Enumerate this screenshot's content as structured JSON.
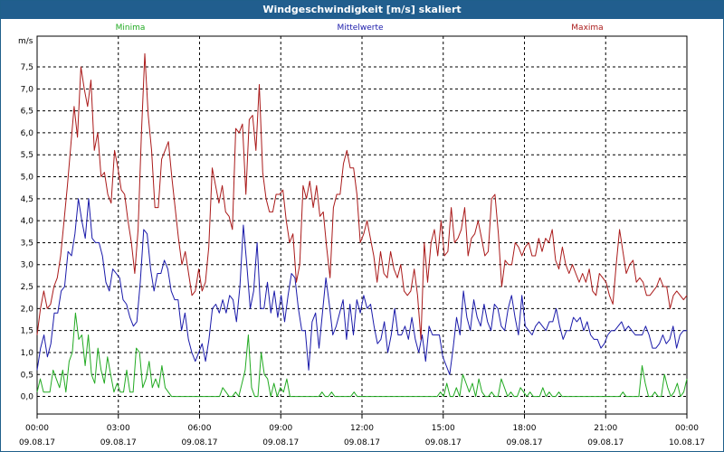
{
  "window": {
    "title": "Windgeschwindigkeit [m/s] skaliert"
  },
  "chart_data": {
    "type": "line",
    "title": "Windgeschwindigkeit [m/s] skaliert",
    "ylabel": "m/s",
    "xlabel": "",
    "ylim": [
      -0.4,
      8.2
    ],
    "y_ticks": [
      "0,0",
      "0,5",
      "1,0",
      "1,5",
      "2,0",
      "2,5",
      "3,0",
      "3,5",
      "4,0",
      "4,5",
      "5,0",
      "5,5",
      "6,0",
      "6,5",
      "7,0",
      "7,5"
    ],
    "y_tick_values": [
      0,
      0.5,
      1,
      1.5,
      2,
      2.5,
      3,
      3.5,
      4,
      4.5,
      5,
      5.5,
      6,
      6.5,
      7,
      7.5
    ],
    "x_range_hours": [
      0,
      24
    ],
    "x_ticks": [
      {
        "hour": 0,
        "time": "00:00",
        "date": "09.08.17"
      },
      {
        "hour": 3,
        "time": "03:00",
        "date": "09.08.17"
      },
      {
        "hour": 6,
        "time": "06:00",
        "date": "09.08.17"
      },
      {
        "hour": 9,
        "time": "09:00",
        "date": "09.08.17"
      },
      {
        "hour": 12,
        "time": "12:00",
        "date": "09.08.17"
      },
      {
        "hour": 15,
        "time": "15:00",
        "date": "09.08.17"
      },
      {
        "hour": 18,
        "time": "18:00",
        "date": "09.08.17"
      },
      {
        "hour": 21,
        "time": "21:00",
        "date": "09.08.17"
      },
      {
        "hour": 24,
        "time": "00:00",
        "date": "10.08.17"
      }
    ],
    "grid": true,
    "legend_position": "top",
    "series": [
      {
        "name": "Minima",
        "color": "#22aa22",
        "values": [
          0.1,
          0.4,
          0.1,
          0.1,
          0.1,
          0.6,
          0.4,
          0.2,
          0.6,
          0.1,
          0.8,
          1.0,
          1.9,
          1.3,
          1.4,
          0.7,
          1.4,
          0.5,
          0.3,
          1.1,
          0.6,
          0.3,
          0.9,
          0.5,
          0.1,
          0.3,
          0.1,
          0.1,
          0.6,
          0.1,
          0.1,
          1.1,
          1.0,
          0.2,
          0.4,
          0.8,
          0.2,
          0.4,
          0.2,
          0.7,
          0.2,
          0.1,
          0.0,
          0.0,
          0.0,
          0.0,
          0.0,
          0.0,
          0.0,
          0.0,
          0.0,
          0.0,
          0.0,
          0.0,
          0.0,
          0.0,
          0.0,
          0.0,
          0.2,
          0.1,
          0.0,
          0.0,
          0.1,
          0.0,
          0.3,
          0.6,
          1.4,
          0.2,
          0.0,
          0.0,
          1.0,
          0.5,
          0.4,
          0.0,
          0.3,
          0.0,
          0.2,
          0.1,
          0.4,
          0.0,
          0.0,
          0.0,
          0.0,
          0.0,
          0.0,
          0.0,
          0.0,
          0.0,
          0.0,
          0.1,
          0.0,
          0.0,
          0.1,
          0.0,
          0.0,
          0.0,
          0.0,
          0.0,
          0.0,
          0.1,
          0.0,
          0.0,
          0.0,
          0.0,
          0.0,
          0.0,
          0.0,
          0.0,
          0.0,
          0.0,
          0.0,
          0.0,
          0.0,
          0.0,
          0.0,
          0.0,
          0.0,
          0.0,
          0.0,
          0.0,
          0.0,
          0.0,
          0.0,
          0.0,
          0.0,
          0.0,
          0.1,
          0.0,
          0.3,
          0.0,
          0.0,
          0.2,
          0.0,
          0.5,
          0.3,
          0.1,
          0.3,
          0.0,
          0.4,
          0.1,
          0.0,
          0.0,
          0.1,
          0.0,
          0.0,
          0.4,
          0.2,
          0.0,
          0.1,
          0.0,
          0.0,
          0.2,
          0.1,
          0.0,
          0.1,
          0.0,
          0.0,
          0.0,
          0.2,
          0.0,
          0.1,
          0.0,
          0.0,
          0.1,
          0.0,
          0.0,
          0.0,
          0.0,
          0.0,
          0.0,
          0.0,
          0.0,
          0.0,
          0.0,
          0.0,
          0.0,
          0.0,
          0.0,
          0.0,
          0.0,
          0.0,
          0.0,
          0.0,
          0.1,
          0.0,
          0.0,
          0.0,
          0.0,
          0.0,
          0.7,
          0.3,
          0.0,
          0.0,
          0.1,
          0.0,
          0.0,
          0.5,
          0.2,
          0.0,
          0.1,
          0.3,
          0.0,
          0.1,
          0.4
        ]
      },
      {
        "name": "Mittelwerte",
        "color": "#1a1aaa",
        "values": [
          0.6,
          1.1,
          1.4,
          0.9,
          1.2,
          1.9,
          1.9,
          2.4,
          2.5,
          3.3,
          3.2,
          3.7,
          4.5,
          4.0,
          3.6,
          4.5,
          3.6,
          3.5,
          3.5,
          3.2,
          2.6,
          2.4,
          2.9,
          2.8,
          2.7,
          2.2,
          2.1,
          1.8,
          1.6,
          1.7,
          2.6,
          3.8,
          3.7,
          2.9,
          2.4,
          2.8,
          2.8,
          3.1,
          2.9,
          2.4,
          2.2,
          2.2,
          1.5,
          1.9,
          1.3,
          1.0,
          0.8,
          1.0,
          1.2,
          0.8,
          1.3,
          2.0,
          2.1,
          1.9,
          2.2,
          1.9,
          2.3,
          2.2,
          1.7,
          2.5,
          3.9,
          3.0,
          2.0,
          2.4,
          3.5,
          2.0,
          2.0,
          2.6,
          1.9,
          2.4,
          1.8,
          2.3,
          1.7,
          2.3,
          2.8,
          2.7,
          2.0,
          1.5,
          1.5,
          0.6,
          1.7,
          1.9,
          1.1,
          1.9,
          2.7,
          2.1,
          1.4,
          1.6,
          1.9,
          2.2,
          1.3,
          2.1,
          1.4,
          2.2,
          1.9,
          2.3,
          2.0,
          2.1,
          1.6,
          1.2,
          1.3,
          1.7,
          1.0,
          1.4,
          2.0,
          1.4,
          1.4,
          1.6,
          1.3,
          1.8,
          1.3,
          1.0,
          1.4,
          0.8,
          1.6,
          1.4,
          1.4,
          1.4,
          0.9,
          0.7,
          0.5,
          1.1,
          1.8,
          1.4,
          2.4,
          1.8,
          1.5,
          2.2,
          1.8,
          1.6,
          2.1,
          1.7,
          1.5,
          2.1,
          2.0,
          1.6,
          1.5,
          2.0,
          2.3,
          1.8,
          1.4,
          2.3,
          1.6,
          1.5,
          1.4,
          1.6,
          1.7,
          1.6,
          1.5,
          1.7,
          1.7,
          2.0,
          1.6,
          1.3,
          1.5,
          1.5,
          1.8,
          1.7,
          1.8,
          1.5,
          1.7,
          1.4,
          1.3,
          1.3,
          1.1,
          1.2,
          1.4,
          1.5,
          1.5,
          1.6,
          1.7,
          1.5,
          1.6,
          1.5,
          1.4,
          1.4,
          1.4,
          1.6,
          1.4,
          1.1,
          1.1,
          1.2,
          1.4,
          1.2,
          1.3,
          1.6,
          1.1,
          1.4,
          1.5,
          1.5
        ]
      },
      {
        "name": "Maxima",
        "color": "#aa1a1a",
        "values": [
          1.4,
          2.0,
          2.4,
          2.0,
          2.1,
          2.5,
          2.7,
          3.2,
          4.0,
          4.8,
          5.7,
          6.6,
          5.9,
          7.5,
          7.0,
          6.6,
          7.2,
          5.6,
          6.0,
          5.0,
          5.1,
          4.6,
          4.4,
          5.6,
          5.2,
          4.7,
          4.6,
          4.0,
          3.5,
          2.8,
          3.8,
          6.0,
          7.8,
          6.4,
          5.6,
          4.3,
          4.3,
          5.4,
          5.6,
          5.8,
          5.0,
          4.3,
          3.6,
          3.0,
          3.3,
          2.8,
          2.3,
          2.4,
          2.9,
          2.4,
          2.6,
          3.4,
          5.2,
          4.8,
          4.4,
          4.8,
          4.2,
          4.1,
          3.8,
          6.1,
          6.0,
          6.2,
          4.6,
          6.3,
          6.4,
          5.6,
          7.1,
          5.1,
          4.5,
          4.2,
          4.2,
          4.6,
          4.6,
          4.7,
          4.0,
          3.5,
          3.7,
          2.6,
          3.0,
          4.8,
          4.5,
          4.9,
          4.3,
          4.8,
          4.1,
          4.2,
          3.4,
          2.7,
          4.3,
          4.6,
          4.6,
          5.3,
          5.6,
          5.2,
          5.2,
          4.6,
          3.5,
          3.7,
          4.0,
          3.6,
          3.2,
          2.6,
          3.3,
          2.8,
          2.7,
          3.3,
          2.9,
          2.7,
          3.0,
          2.4,
          2.3,
          2.4,
          2.9,
          2.3,
          1.3,
          3.5,
          2.6,
          3.5,
          3.8,
          3.2,
          4.0,
          3.2,
          3.3,
          4.3,
          3.5,
          3.6,
          3.8,
          4.3,
          3.2,
          3.6,
          3.7,
          4.0,
          3.6,
          3.2,
          3.3,
          4.5,
          4.6,
          3.7,
          2.5,
          3.1,
          3.0,
          3.0,
          3.5,
          3.4,
          3.2,
          3.4,
          3.5,
          3.2,
          3.2,
          3.6,
          3.3,
          3.6,
          3.5,
          3.8,
          3.1,
          2.9,
          3.4,
          3.0,
          2.8,
          3.0,
          2.8,
          2.6,
          2.8,
          2.6,
          2.9,
          2.4,
          2.3,
          2.8,
          2.7,
          2.6,
          2.3,
          2.1,
          3.0,
          3.8,
          3.3,
          2.8,
          3.0,
          3.1,
          2.6,
          2.7,
          2.6,
          2.3,
          2.3,
          2.4,
          2.5,
          2.7,
          2.5,
          2.5,
          2.0,
          2.3,
          2.4,
          2.3,
          2.2,
          2.3
        ]
      }
    ]
  }
}
